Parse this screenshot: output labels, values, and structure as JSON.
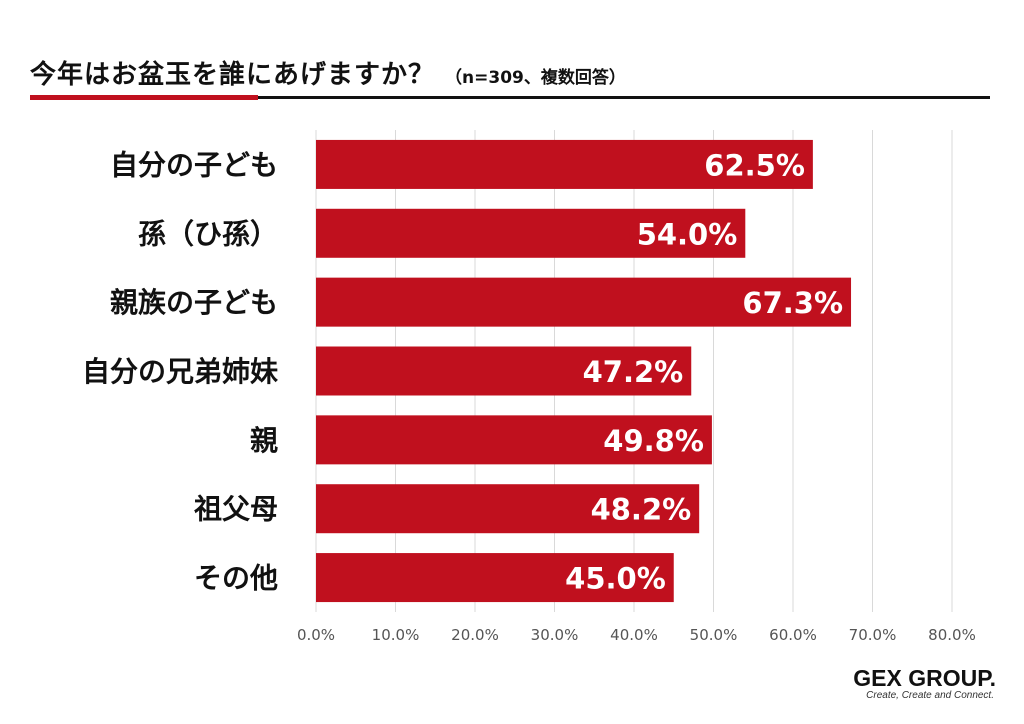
{
  "colors": {
    "accent": "#c0101e",
    "grid": "#d9d9d9",
    "text": "#111111"
  },
  "header": {
    "title": "今年はお盆玉を誰にあげますか？",
    "subtitle": "（n=309、複数回答）"
  },
  "chart_data": {
    "type": "bar",
    "orientation": "horizontal",
    "categories": [
      "自分の子ども",
      "孫（ひ孫）",
      "親族の子ども",
      "自分の兄弟姉妹",
      "親",
      "祖父母",
      "その他"
    ],
    "values": [
      62.5,
      54.0,
      67.3,
      47.2,
      49.8,
      48.2,
      45.0
    ],
    "data_labels": [
      "62.5%",
      "54.0%",
      "67.3%",
      "47.2%",
      "49.8%",
      "48.2%",
      "45.0%"
    ],
    "xlim": [
      0,
      80
    ],
    "x_ticks": [
      0,
      10,
      20,
      30,
      40,
      50,
      60,
      70,
      80
    ],
    "x_tick_labels": [
      "0.0%",
      "10.0%",
      "20.0%",
      "30.0%",
      "40.0%",
      "50.0%",
      "60.0%",
      "70.0%",
      "80.0%"
    ],
    "grid": true
  },
  "logo": {
    "name": "GEX GROUP.",
    "tagline": "Create, Create and Connect."
  }
}
